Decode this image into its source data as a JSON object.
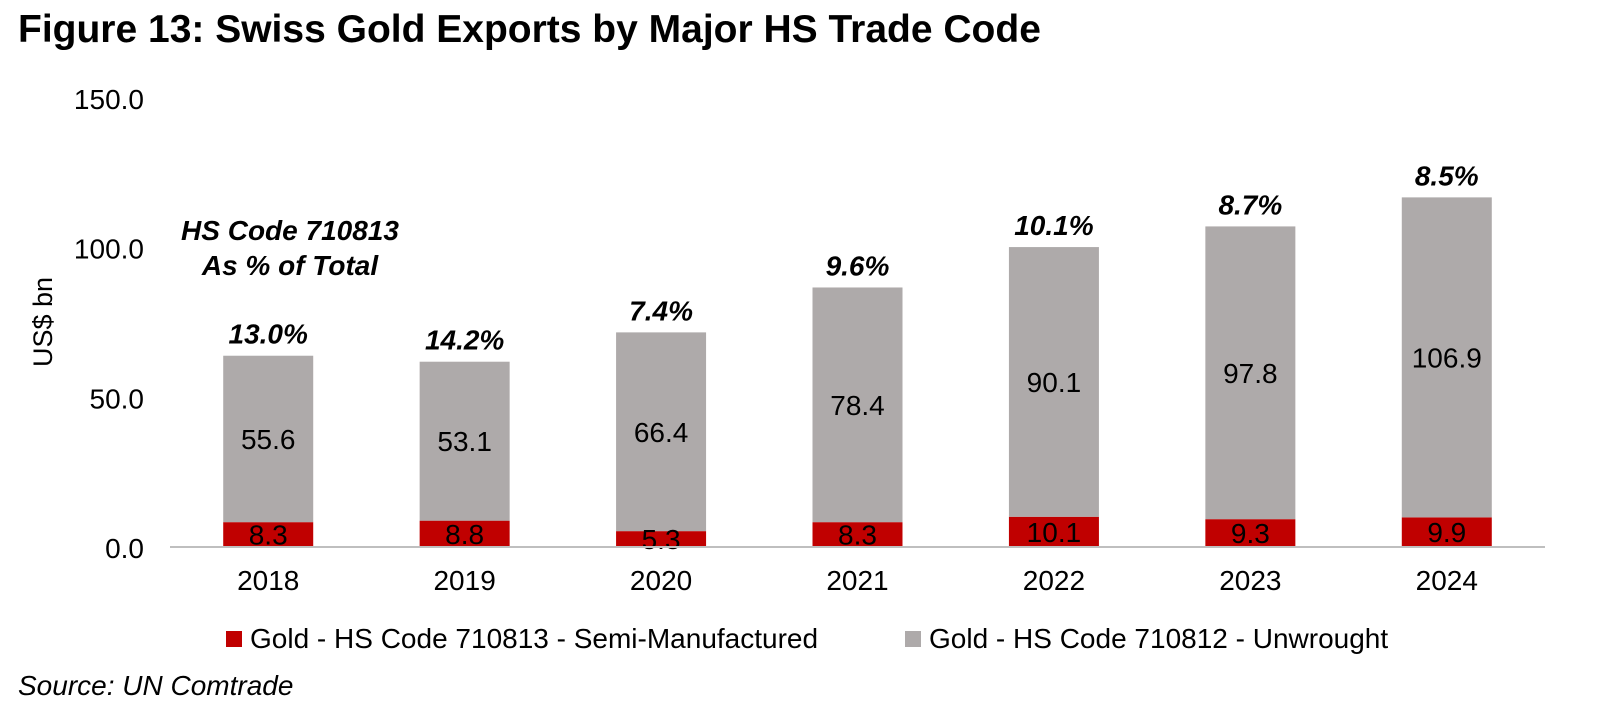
{
  "title": "Figure 13: Swiss Gold Exports by Major HS Trade Code",
  "source": "Source: UN Comtrade",
  "colors": {
    "semi": "#c00000",
    "unwrought": "#aeaaaa",
    "axis": "#bfbfbf"
  },
  "chart_data": {
    "type": "bar",
    "stacked": true,
    "categories": [
      "2018",
      "2019",
      "2020",
      "2021",
      "2022",
      "2023",
      "2024"
    ],
    "series": [
      {
        "name": "Gold - HS Code 710813 - Semi-Manufactured",
        "values": [
          8.3,
          8.8,
          5.3,
          8.3,
          10.1,
          9.3,
          9.9
        ]
      },
      {
        "name": "Gold - HS Code 710812 - Unwrought",
        "values": [
          55.6,
          53.1,
          66.4,
          78.4,
          90.1,
          97.8,
          106.9
        ]
      }
    ],
    "share_labels": [
      "13.0%",
      "14.2%",
      "7.4%",
      "9.6%",
      "10.1%",
      "8.7%",
      "8.5%"
    ],
    "annotation": [
      "HS Code 710813",
      "As % of Total"
    ],
    "ylabel": "US$ bn",
    "xlabel": "",
    "ylim": [
      0,
      150
    ],
    "yticks": [
      "0.0",
      "50.0",
      "100.0",
      "150.0"
    ],
    "grid": false,
    "legend": "bottom"
  }
}
